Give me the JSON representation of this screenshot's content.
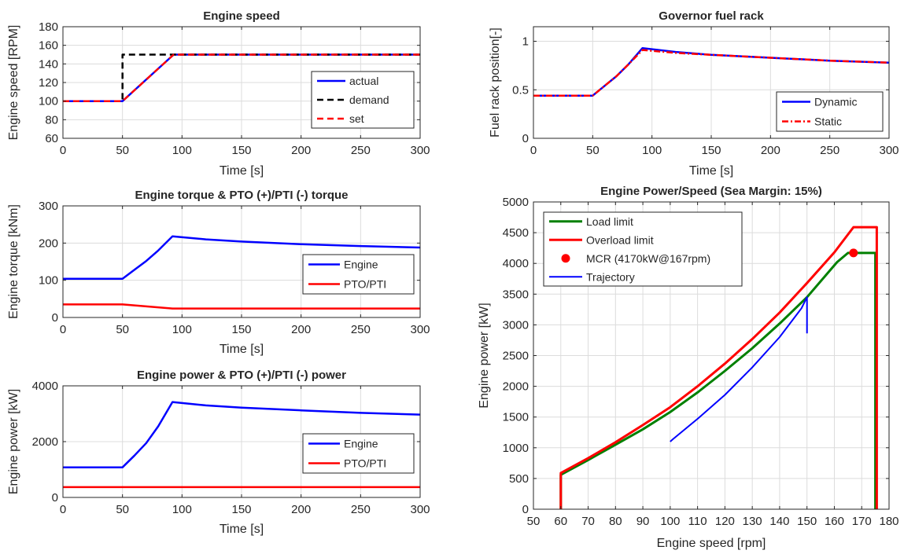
{
  "colors": {
    "blue": "#0000ff",
    "black": "#000000",
    "red": "#ff0000",
    "green": "#008000",
    "grid": "#dcdcdc"
  },
  "chart_data": [
    {
      "id": "speed",
      "type": "line",
      "title": "Engine speed",
      "xlabel": "Time [s]",
      "ylabel": "Engine speed [RPM]",
      "xlim": [
        0,
        300
      ],
      "ylim": [
        60,
        180
      ],
      "xticks": [
        0,
        50,
        100,
        150,
        200,
        250,
        300
      ],
      "yticks": [
        60,
        80,
        100,
        120,
        140,
        160,
        180
      ],
      "grid": true,
      "legend": "right",
      "series": [
        {
          "name": "actual",
          "color": "#0000ff",
          "dash": "",
          "x": [
            0,
            50,
            93,
            300
          ],
          "y": [
            100,
            100,
            150,
            150
          ]
        },
        {
          "name": "demand",
          "color": "#000000",
          "dash": "8,5",
          "x": [
            0,
            50,
            50,
            300
          ],
          "y": [
            100,
            100,
            150,
            150
          ]
        },
        {
          "name": "set",
          "color": "#ff0000",
          "dash": "8,5",
          "x": [
            0,
            50,
            93,
            300
          ],
          "y": [
            100,
            100,
            150,
            150
          ]
        }
      ]
    },
    {
      "id": "rack",
      "type": "line",
      "title": "Governor fuel rack",
      "xlabel": "Time [s]",
      "ylabel": "Fuel rack position[-]",
      "xlim": [
        0,
        300
      ],
      "ylim": [
        0,
        1.15
      ],
      "xticks": [
        0,
        50,
        100,
        150,
        200,
        250,
        300
      ],
      "yticks": [
        0,
        0.5,
        1
      ],
      "grid": true,
      "legend": "bottom-right",
      "series": [
        {
          "name": "Dynamic",
          "color": "#0000ff",
          "dash": "",
          "x": [
            0,
            50,
            60,
            70,
            80,
            92,
            120,
            150,
            200,
            250,
            300
          ],
          "y": [
            0.44,
            0.44,
            0.54,
            0.64,
            0.76,
            0.93,
            0.89,
            0.86,
            0.83,
            0.8,
            0.78
          ]
        },
        {
          "name": "Static",
          "color": "#ff0000",
          "dash": "8,3,2,3",
          "x": [
            0,
            50,
            60,
            70,
            80,
            92,
            120,
            150,
            200,
            250,
            300
          ],
          "y": [
            0.44,
            0.44,
            0.54,
            0.64,
            0.76,
            0.91,
            0.88,
            0.86,
            0.83,
            0.8,
            0.78
          ]
        }
      ]
    },
    {
      "id": "torque",
      "type": "line",
      "title": "Engine torque & PTO (+)/PTI (-) torque",
      "xlabel": "Time [s]",
      "ylabel": "Engine torque [kNm]",
      "xlim": [
        0,
        300
      ],
      "ylim": [
        0,
        300
      ],
      "xticks": [
        0,
        50,
        100,
        150,
        200,
        250,
        300
      ],
      "yticks": [
        0,
        100,
        200,
        300
      ],
      "grid": true,
      "legend": "right",
      "series": [
        {
          "name": "Engine",
          "color": "#0000ff",
          "dash": "",
          "x": [
            0,
            50,
            60,
            70,
            80,
            92,
            120,
            150,
            200,
            250,
            300
          ],
          "y": [
            104,
            104,
            128,
            152,
            180,
            218,
            210,
            204,
            197,
            192,
            188
          ]
        },
        {
          "name": "PTO/PTI",
          "color": "#ff0000",
          "dash": "",
          "x": [
            0,
            50,
            92,
            300
          ],
          "y": [
            35,
            35,
            24,
            24
          ]
        }
      ]
    },
    {
      "id": "power",
      "type": "line",
      "title": "Engine power & PTO (+)/PTI (-) power",
      "xlabel": "Time [s]",
      "ylabel": "Engine power [kW]",
      "xlim": [
        0,
        300
      ],
      "ylim": [
        0,
        4000
      ],
      "xticks": [
        0,
        50,
        100,
        150,
        200,
        250,
        300
      ],
      "yticks": [
        0,
        2000,
        4000
      ],
      "grid": true,
      "legend": "right",
      "series": [
        {
          "name": "Engine",
          "color": "#0000ff",
          "dash": "",
          "x": [
            0,
            50,
            60,
            70,
            80,
            92,
            120,
            150,
            200,
            250,
            300
          ],
          "y": [
            1080,
            1080,
            1500,
            1950,
            2550,
            3420,
            3300,
            3220,
            3120,
            3030,
            2970
          ]
        },
        {
          "name": "PTO/PTI",
          "color": "#ff0000",
          "dash": "",
          "x": [
            0,
            300
          ],
          "y": [
            370,
            370
          ]
        }
      ]
    },
    {
      "id": "powerspeed",
      "type": "line",
      "title": "Engine Power/Speed (Sea Margin: 15%)",
      "xlabel": "Engine speed [rpm]",
      "ylabel": "Engine power [kW]",
      "xlim": [
        50,
        180
      ],
      "ylim": [
        0,
        5000
      ],
      "xticks": [
        50,
        60,
        70,
        80,
        90,
        100,
        110,
        120,
        130,
        140,
        150,
        160,
        170,
        180
      ],
      "yticks": [
        0,
        500,
        1000,
        1500,
        2000,
        2500,
        3000,
        3500,
        4000,
        4500,
        5000
      ],
      "grid": true,
      "legend": "top-left",
      "series": [
        {
          "name": "Load limit",
          "color": "#008000",
          "dash": "",
          "width": 3,
          "x": [
            60,
            60,
            70,
            80,
            90,
            100,
            110,
            120,
            130,
            140,
            150,
            161,
            165,
            175,
            175
          ],
          "y": [
            0,
            560,
            800,
            1050,
            1300,
            1580,
            1900,
            2250,
            2620,
            3020,
            3450,
            4020,
            4170,
            4170,
            0
          ]
        },
        {
          "name": "Overload limit",
          "color": "#ff0000",
          "dash": "",
          "width": 3,
          "x": [
            60,
            60,
            70,
            80,
            90,
            100,
            110,
            120,
            130,
            140,
            150,
            160,
            167,
            175.5,
            175.5
          ],
          "y": [
            0,
            590,
            830,
            1090,
            1370,
            1660,
            2000,
            2370,
            2770,
            3200,
            3680,
            4180,
            4590,
            4590,
            0
          ]
        },
        {
          "name": "MCR (4170kW@167rpm)",
          "color": "#ff0000",
          "marker": true,
          "x": [
            167
          ],
          "y": [
            4170
          ]
        },
        {
          "name": "Trajectory",
          "color": "#0000ff",
          "dash": "",
          "width": 2,
          "x": [
            100,
            101,
            110,
            120,
            130,
            140,
            148,
            150,
            150
          ],
          "y": [
            1100,
            1140,
            1470,
            1860,
            2310,
            2800,
            3270,
            3450,
            2860
          ]
        }
      ]
    }
  ]
}
